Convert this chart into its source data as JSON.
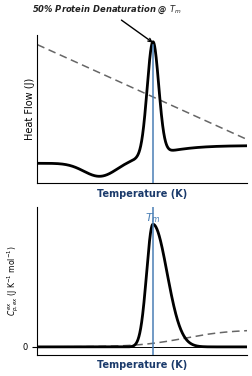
{
  "top_annotation": "50% Protein Denaturation @ $T_m$",
  "top_xlabel": "Temperature (K)",
  "top_ylabel": "Heat Flow (J)",
  "bottom_xlabel": "Temperature (K)",
  "bottom_ylabel": "$C_{p,ex}^{ex}$ (J K$^{-1}$ mol$^{-1}$)",
  "bottom_tm_label": "$T_m$",
  "line_color": "black",
  "dash_color": "#666666",
  "vline_color": "#4a7fb5",
  "annotation_color": "#222222",
  "bg_color": "white",
  "tm_label_color_bottom": "#4a7fb5",
  "xlabel_color": "#1a3a6b",
  "tm": 5.5,
  "xlim": [
    0,
    10
  ]
}
